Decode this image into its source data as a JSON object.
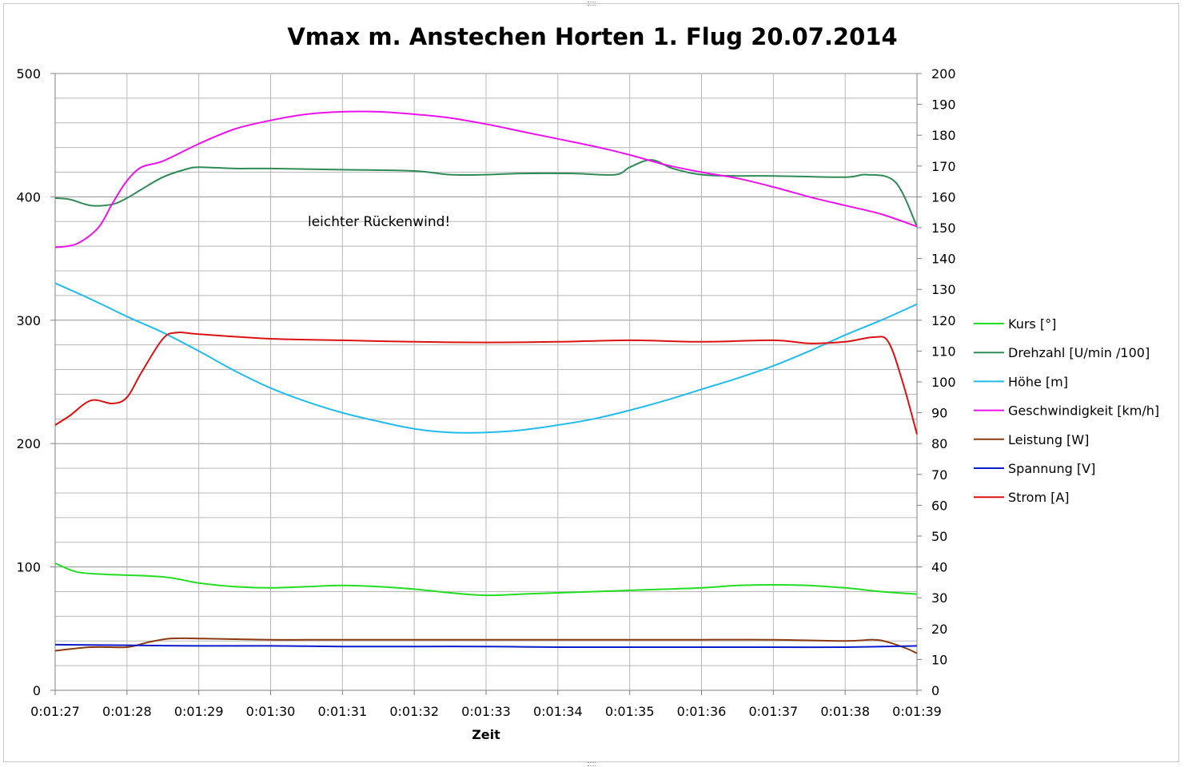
{
  "chart_data": {
    "type": "line",
    "title": "Vmax m. Anstechen Horten 1. Flug 20.07.2014",
    "xlabel": "Zeit",
    "ylabel": "",
    "y2label": "",
    "x": [
      "0:01:27",
      "0:01:28",
      "0:01:29",
      "0:01:30",
      "0:01:31",
      "0:01:32",
      "0:01:33",
      "0:01:34",
      "0:01:35",
      "0:01:36",
      "0:01:37",
      "0:01:38",
      "0:01:39"
    ],
    "ylim": [
      0,
      500
    ],
    "y_ticks": [
      0,
      100,
      200,
      300,
      400,
      500
    ],
    "y2lim": [
      0,
      200
    ],
    "y2_ticks": [
      0,
      10,
      20,
      30,
      40,
      50,
      60,
      70,
      80,
      90,
      100,
      110,
      120,
      130,
      140,
      150,
      160,
      170,
      180,
      190,
      200
    ],
    "grid": true,
    "legend_position": "right",
    "annotation": "leichter Rückenwind!",
    "series": [
      {
        "name": "Kurs [°]",
        "color": "#22dd22",
        "axis": "left",
        "points": [
          [
            0,
            103
          ],
          [
            0.3,
            96
          ],
          [
            0.7,
            94
          ],
          [
            1.5,
            92
          ],
          [
            2,
            87
          ],
          [
            2.5,
            84
          ],
          [
            3,
            83
          ],
          [
            3.5,
            84
          ],
          [
            4,
            85
          ],
          [
            4.5,
            84
          ],
          [
            5,
            82
          ],
          [
            5.5,
            79
          ],
          [
            6,
            77
          ],
          [
            6.5,
            78
          ],
          [
            7,
            79
          ],
          [
            7.5,
            80
          ],
          [
            8,
            81
          ],
          [
            8.5,
            82
          ],
          [
            9,
            83
          ],
          [
            9.5,
            85
          ],
          [
            10,
            85.5
          ],
          [
            10.5,
            85
          ],
          [
            11,
            83
          ],
          [
            11.5,
            80
          ],
          [
            12,
            78
          ]
        ]
      },
      {
        "name": "Drehzahl [U/min /100]",
        "color": "#2e8b57",
        "axis": "left",
        "points": [
          [
            0,
            399
          ],
          [
            0.2,
            398
          ],
          [
            0.5,
            393
          ],
          [
            0.8,
            394
          ],
          [
            1,
            399
          ],
          [
            1.2,
            406
          ],
          [
            1.5,
            416
          ],
          [
            1.8,
            422
          ],
          [
            2,
            424
          ],
          [
            2.5,
            423
          ],
          [
            3,
            423
          ],
          [
            4,
            422
          ],
          [
            5,
            421
          ],
          [
            5.5,
            418
          ],
          [
            6,
            418
          ],
          [
            6.5,
            419
          ],
          [
            7.2,
            419
          ],
          [
            7.8,
            418
          ],
          [
            8,
            424
          ],
          [
            8.3,
            430
          ],
          [
            8.6,
            423
          ],
          [
            9,
            418
          ],
          [
            9.5,
            417
          ],
          [
            10,
            417
          ],
          [
            11,
            416
          ],
          [
            11.3,
            418
          ],
          [
            11.7,
            412
          ],
          [
            12,
            376
          ]
        ]
      },
      {
        "name": "Höhe [m]",
        "color": "#22bbee",
        "axis": "left",
        "points": [
          [
            0,
            330
          ],
          [
            0.5,
            317
          ],
          [
            1,
            303
          ],
          [
            1.5,
            290
          ],
          [
            2,
            275
          ],
          [
            2.5,
            259
          ],
          [
            3,
            245
          ],
          [
            3.5,
            234
          ],
          [
            4,
            225
          ],
          [
            4.5,
            218
          ],
          [
            5,
            212
          ],
          [
            5.5,
            209
          ],
          [
            6,
            209
          ],
          [
            6.5,
            211
          ],
          [
            7,
            215
          ],
          [
            7.5,
            220
          ],
          [
            8,
            227
          ],
          [
            8.5,
            235
          ],
          [
            9,
            244
          ],
          [
            9.5,
            253
          ],
          [
            10,
            263
          ],
          [
            10.5,
            275
          ],
          [
            11,
            288
          ],
          [
            11.5,
            300
          ],
          [
            12,
            313
          ]
        ]
      },
      {
        "name": "Geschwindigkeit [km/h]",
        "color": "#ee11ee",
        "axis": "left",
        "points": [
          [
            0,
            359
          ],
          [
            0.3,
            362
          ],
          [
            0.6,
            375
          ],
          [
            0.8,
            395
          ],
          [
            1,
            413
          ],
          [
            1.2,
            424
          ],
          [
            1.5,
            429
          ],
          [
            2,
            443
          ],
          [
            2.5,
            455
          ],
          [
            3,
            462
          ],
          [
            3.5,
            467
          ],
          [
            4,
            469
          ],
          [
            4.5,
            469
          ],
          [
            5,
            467
          ],
          [
            5.5,
            464
          ],
          [
            6,
            459
          ],
          [
            6.5,
            453
          ],
          [
            7,
            447
          ],
          [
            7.5,
            441
          ],
          [
            8,
            434
          ],
          [
            8.5,
            426
          ],
          [
            9,
            420
          ],
          [
            9.5,
            415
          ],
          [
            10,
            408
          ],
          [
            10.5,
            400
          ],
          [
            11,
            393
          ],
          [
            11.5,
            386
          ],
          [
            12,
            376
          ]
        ]
      },
      {
        "name": "Leistung [W]",
        "color": "#8b3a0f",
        "axis": "left",
        "points": [
          [
            0,
            32
          ],
          [
            0.5,
            35
          ],
          [
            1,
            35
          ],
          [
            1.3,
            39
          ],
          [
            1.6,
            42
          ],
          [
            2,
            42
          ],
          [
            3,
            41
          ],
          [
            4,
            41
          ],
          [
            5,
            41
          ],
          [
            6,
            41
          ],
          [
            7,
            41
          ],
          [
            8,
            41
          ],
          [
            9,
            41
          ],
          [
            10,
            41
          ],
          [
            11,
            40
          ],
          [
            11.4,
            41
          ],
          [
            11.6,
            39
          ],
          [
            11.85,
            34
          ],
          [
            12,
            30
          ]
        ]
      },
      {
        "name": "Spannung [V]",
        "color": "#0a1acc",
        "axis": "left",
        "points": [
          [
            0,
            37
          ],
          [
            1,
            36.5
          ],
          [
            2,
            36
          ],
          [
            3,
            36
          ],
          [
            4,
            35.5
          ],
          [
            5,
            35.5
          ],
          [
            6,
            35.5
          ],
          [
            7,
            35
          ],
          [
            8,
            35
          ],
          [
            9,
            35
          ],
          [
            10,
            35
          ],
          [
            11,
            35
          ],
          [
            12,
            36
          ]
        ]
      },
      {
        "name": "Strom [A]",
        "color": "#dd1111",
        "axis": "right",
        "points": [
          [
            0,
            86
          ],
          [
            0.2,
            89
          ],
          [
            0.5,
            94
          ],
          [
            0.8,
            93
          ],
          [
            1,
            95
          ],
          [
            1.2,
            103
          ],
          [
            1.5,
            114
          ],
          [
            1.7,
            116
          ],
          [
            2,
            115.5
          ],
          [
            3,
            114
          ],
          [
            4,
            113.5
          ],
          [
            5,
            113
          ],
          [
            6,
            112.8
          ],
          [
            7,
            113
          ],
          [
            8,
            113.5
          ],
          [
            9,
            113
          ],
          [
            10,
            113.5
          ],
          [
            10.5,
            112.5
          ],
          [
            11,
            113
          ],
          [
            11.4,
            114.5
          ],
          [
            11.6,
            113
          ],
          [
            11.8,
            100
          ],
          [
            12,
            83
          ]
        ]
      }
    ]
  }
}
